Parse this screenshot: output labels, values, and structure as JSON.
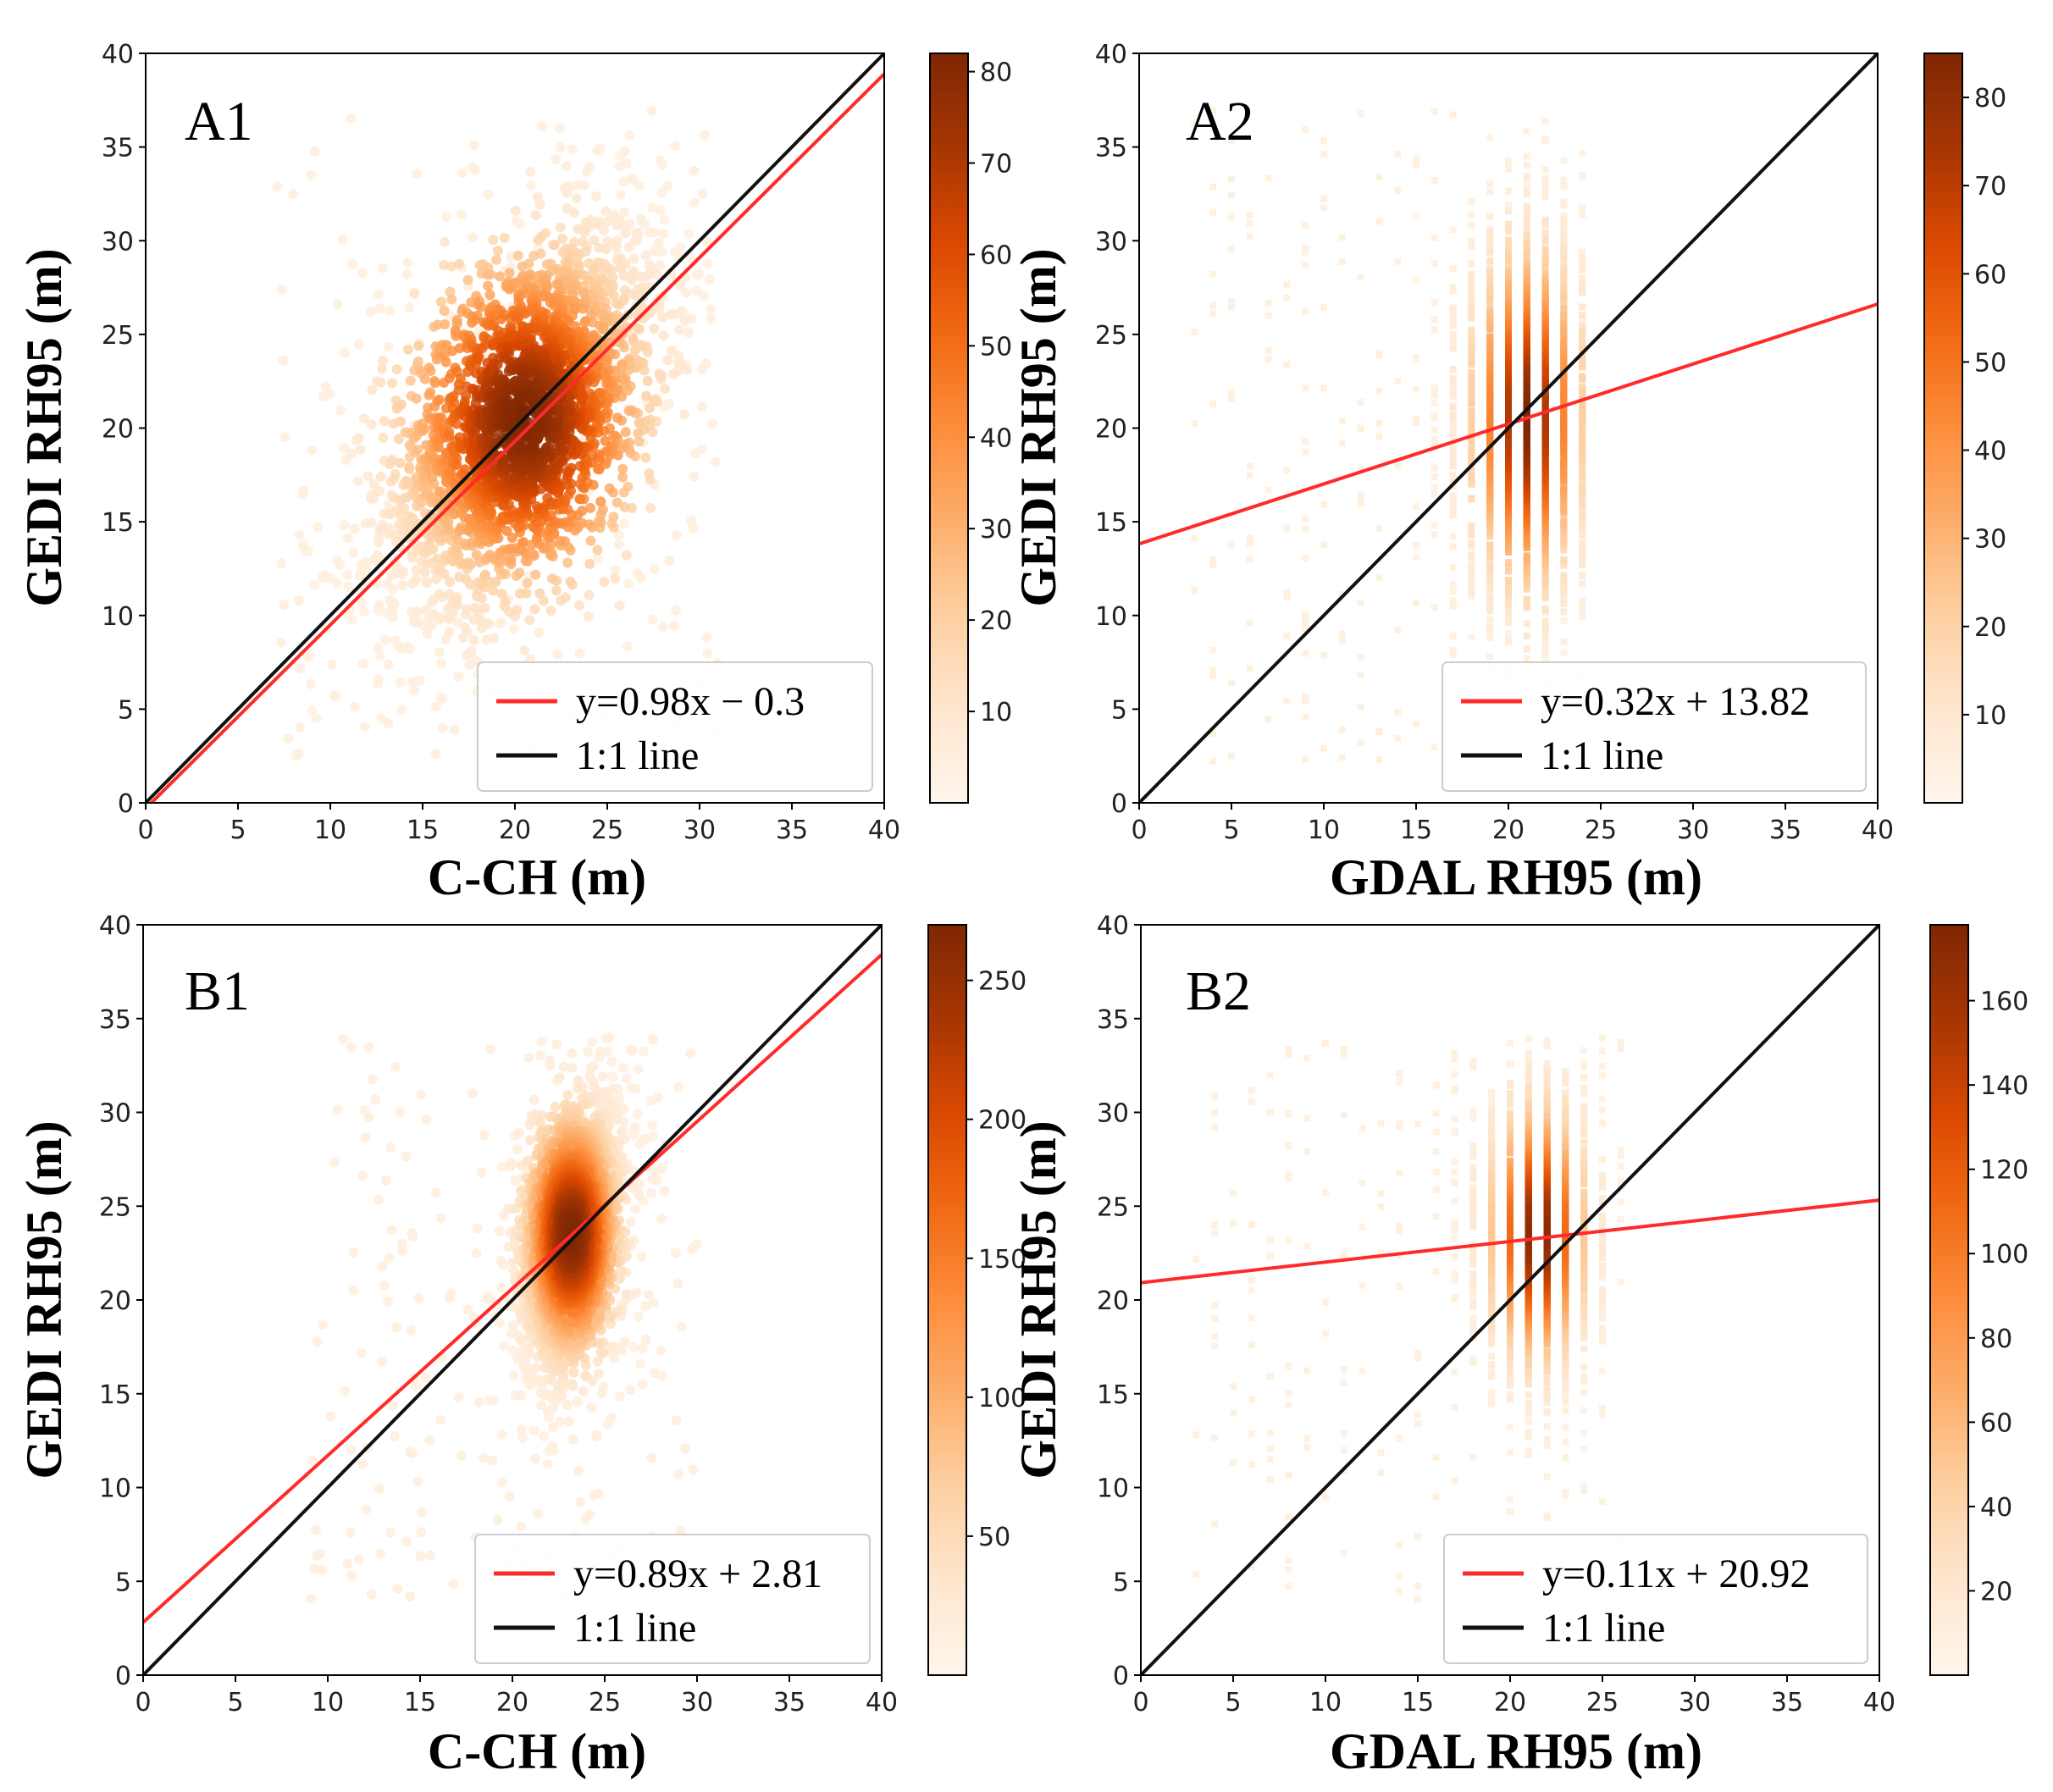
{
  "chart_data": [
    {
      "panel": "A1",
      "type": "scatter",
      "subtype": "density-hexbin",
      "xlabel": "C-CH (m)",
      "ylabel": "GEDI RH95 (m)",
      "xlim": [
        0,
        40
      ],
      "ylim": [
        0,
        40
      ],
      "xticks": [
        "0",
        "5",
        "10",
        "15",
        "20",
        "25",
        "30",
        "35",
        "40"
      ],
      "yticks": [
        "0",
        "5",
        "10",
        "15",
        "20",
        "25",
        "30",
        "35",
        "40"
      ],
      "density": {
        "center": [
          20.5,
          20.5
        ],
        "spread": [
          3.3,
          5.2
        ],
        "corr": 0.5,
        "count_max": 82,
        "discrete_x": false,
        "x_range": [
          7,
          31
        ],
        "y_range": [
          2,
          37
        ]
      },
      "colorbar": {
        "min": 0,
        "max": 82,
        "ticks": [
          "10",
          "20",
          "30",
          "40",
          "50",
          "60",
          "70",
          "80"
        ]
      },
      "series": [
        {
          "name": "fit",
          "label": "y=0.98x − 0.3",
          "color": "#ff2a2a",
          "slope": 0.98,
          "intercept": -0.3
        },
        {
          "name": "one_to_one",
          "label": "1:1 line",
          "color": "#111111",
          "slope": 1,
          "intercept": 0
        }
      ]
    },
    {
      "panel": "A2",
      "type": "scatter",
      "subtype": "density-binned",
      "xlabel": "GDAL RH95 (m)",
      "ylabel": "GEDI RH95 (m)",
      "xlim": [
        0,
        40
      ],
      "ylim": [
        0,
        40
      ],
      "xticks": [
        "0",
        "5",
        "10",
        "15",
        "20",
        "25",
        "30",
        "35",
        "40"
      ],
      "yticks": [
        "0",
        "5",
        "10",
        "15",
        "20",
        "25",
        "30",
        "35",
        "40"
      ],
      "density": {
        "center": [
          21,
          20.5
        ],
        "spread": [
          1.5,
          5
        ],
        "corr": 0,
        "count_max": 85,
        "discrete_x": true,
        "x_range": [
          3,
          24
        ],
        "y_range": [
          2,
          37
        ]
      },
      "colorbar": {
        "min": 0,
        "max": 85,
        "ticks": [
          "10",
          "20",
          "30",
          "40",
          "50",
          "60",
          "70",
          "80"
        ]
      },
      "series": [
        {
          "name": "fit",
          "label": "y=0.32x + 13.82",
          "color": "#ff2a2a",
          "slope": 0.32,
          "intercept": 13.82
        },
        {
          "name": "one_to_one",
          "label": "1:1 line",
          "color": "#111111",
          "slope": 1,
          "intercept": 0
        }
      ]
    },
    {
      "panel": "B1",
      "type": "scatter",
      "subtype": "density-hexbin",
      "xlabel": "C-CH (m)",
      "ylabel": "GEDI RH95 (m)",
      "xlim": [
        0,
        40
      ],
      "ylim": [
        0,
        40
      ],
      "xticks": [
        "0",
        "5",
        "10",
        "15",
        "20",
        "25",
        "30",
        "35",
        "40"
      ],
      "yticks": [
        "0",
        "5",
        "10",
        "15",
        "20",
        "25",
        "30",
        "35",
        "40"
      ],
      "density": {
        "center": [
          23.2,
          23.5
        ],
        "spread": [
          1.2,
          3.6
        ],
        "corr": 0.3,
        "count_max": 270,
        "discrete_x": false,
        "x_range": [
          9,
          30
        ],
        "y_range": [
          4,
          34
        ]
      },
      "colorbar": {
        "min": 0,
        "max": 270,
        "ticks": [
          "50",
          "100",
          "150",
          "200",
          "250"
        ]
      },
      "series": [
        {
          "name": "fit",
          "label": "y=0.89x + 2.81",
          "color": "#ff2a2a",
          "slope": 0.89,
          "intercept": 2.81
        },
        {
          "name": "one_to_one",
          "label": "1:1 line",
          "color": "#111111",
          "slope": 1,
          "intercept": 0
        }
      ]
    },
    {
      "panel": "B2",
      "type": "scatter",
      "subtype": "density-binned",
      "xlabel": "GDAL RH95 (m)",
      "ylabel": "GEDI RH95 (m)",
      "xlim": [
        0,
        40
      ],
      "ylim": [
        0,
        40
      ],
      "xticks": [
        "0",
        "5",
        "10",
        "15",
        "20",
        "25",
        "30",
        "35",
        "40"
      ],
      "yticks": [
        "0",
        "5",
        "10",
        "15",
        "20",
        "25",
        "30",
        "35",
        "40"
      ],
      "density": {
        "center": [
          21.5,
          23.5
        ],
        "spread": [
          1.3,
          3.8
        ],
        "corr": 0,
        "count_max": 178,
        "discrete_x": true,
        "x_range": [
          3,
          26
        ],
        "y_range": [
          4,
          34
        ]
      },
      "colorbar": {
        "min": 0,
        "max": 178,
        "ticks": [
          "20",
          "40",
          "60",
          "80",
          "100",
          "120",
          "140",
          "160"
        ]
      },
      "series": [
        {
          "name": "fit",
          "label": "y=0.11x + 20.92",
          "color": "#ff2a2a",
          "slope": 0.11,
          "intercept": 20.92
        },
        {
          "name": "one_to_one",
          "label": "1:1 line",
          "color": "#111111",
          "slope": 1,
          "intercept": 0
        }
      ]
    }
  ]
}
